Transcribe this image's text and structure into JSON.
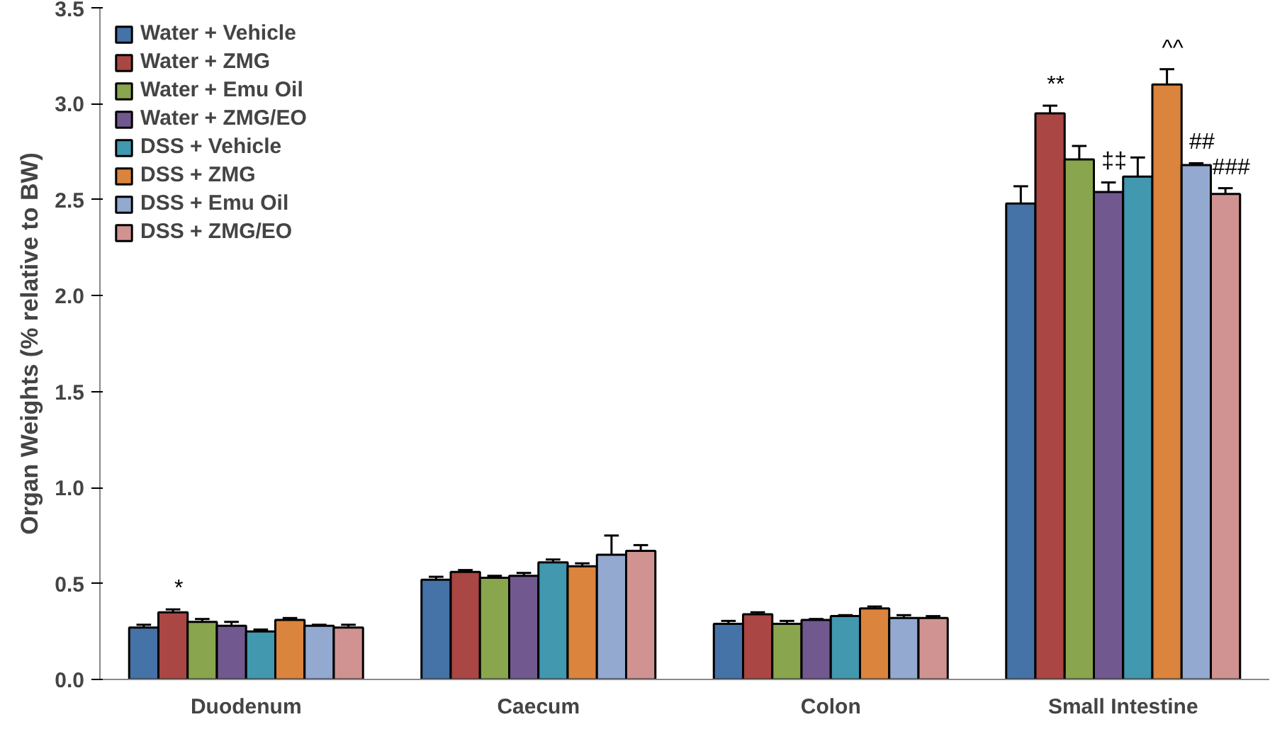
{
  "chart_data": {
    "type": "bar",
    "ylabel": "Organ Weights (% relative to BW)",
    "categories": [
      "Duodenum",
      "Caecum",
      "Colon",
      "Small Intestine"
    ],
    "series": [
      {
        "name": "Water + Vehicle",
        "color": "#4572a7",
        "values": [
          0.27,
          0.52,
          0.29,
          2.48
        ],
        "errors": [
          0.015,
          0.015,
          0.015,
          0.09
        ]
      },
      {
        "name": "Water + ZMG",
        "color": "#aa4643",
        "values": [
          0.35,
          0.56,
          0.34,
          2.95
        ],
        "errors": [
          0.015,
          0.01,
          0.01,
          0.04
        ],
        "value_labels": [
          "*",
          null,
          null,
          "**"
        ]
      },
      {
        "name": "Water + Emu Oil",
        "color": "#89a54e",
        "values": [
          0.3,
          0.53,
          0.29,
          2.71
        ],
        "errors": [
          0.015,
          0.01,
          0.015,
          0.07
        ]
      },
      {
        "name": "Water + ZMG/EO",
        "color": "#71588f",
        "values": [
          0.28,
          0.54,
          0.31,
          2.54
        ],
        "errors": [
          0.02,
          0.015,
          0.005,
          0.05
        ],
        "value_labels": [
          null,
          null,
          null,
          "‡‡"
        ]
      },
      {
        "name": "DSS + Vehicle",
        "color": "#4198af",
        "values": [
          0.25,
          0.61,
          0.33,
          2.62
        ],
        "errors": [
          0.01,
          0.015,
          0.005,
          0.1
        ]
      },
      {
        "name": "DSS + ZMG",
        "color": "#db843d",
        "values": [
          0.31,
          0.59,
          0.37,
          3.1
        ],
        "errors": [
          0.01,
          0.015,
          0.01,
          0.08
        ],
        "value_labels": [
          null,
          null,
          null,
          "^^"
        ]
      },
      {
        "name": "DSS + Emu Oil",
        "color": "#93a9cf",
        "values": [
          0.28,
          0.65,
          0.32,
          2.68
        ],
        "errors": [
          0.005,
          0.1,
          0.015,
          0.01
        ],
        "value_labels": [
          null,
          null,
          null,
          "##"
        ]
      },
      {
        "name": "DSS + ZMG/EO",
        "color": "#d19392",
        "values": [
          0.27,
          0.67,
          0.32,
          2.53
        ],
        "errors": [
          0.015,
          0.03,
          0.01,
          0.03
        ],
        "value_labels": [
          null,
          null,
          null,
          "###"
        ]
      }
    ],
    "ylim": [
      0,
      3.5
    ],
    "yticks": [
      {
        "value": 0,
        "label": "0.0"
      },
      {
        "value": 0.5,
        "label": "0.5"
      },
      {
        "value": 1,
        "label": "1.0"
      },
      {
        "value": 1.5,
        "label": "1.5"
      },
      {
        "value": 2,
        "label": "2.0"
      },
      {
        "value": 2.5,
        "label": "2.5"
      },
      {
        "value": 3,
        "label": "3.0"
      },
      {
        "value": 3.5,
        "label": "3.5"
      }
    ],
    "grid": false,
    "legend": "top left"
  }
}
